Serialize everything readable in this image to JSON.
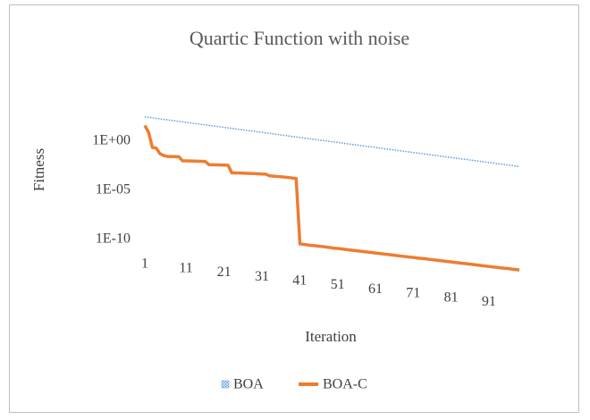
{
  "chart_data": {
    "type": "line",
    "title": "Quartic Function with noise",
    "xlabel": "Iteration",
    "ylabel": "Fitness",
    "log_y": true,
    "grid": false,
    "legend": "bottom",
    "ylim": [
      1e-14,
      1000
    ],
    "yticks": [
      {
        "value": 1,
        "label": "1E+00"
      },
      {
        "value": 1e-05,
        "label": "1E-05"
      },
      {
        "value": 1e-10,
        "label": "1E-10"
      }
    ],
    "categories": [
      "1",
      null,
      null,
      null,
      null,
      null,
      null,
      null,
      null,
      null,
      "11",
      null,
      null,
      null,
      null,
      null,
      null,
      null,
      null,
      null,
      "21",
      null,
      null,
      null,
      null,
      null,
      null,
      null,
      null,
      null,
      "31",
      null,
      null,
      null,
      null,
      null,
      null,
      null,
      null,
      null,
      "41",
      null,
      null,
      null,
      null,
      null,
      null,
      null,
      null,
      null,
      "51",
      null,
      null,
      null,
      null,
      null,
      null,
      null,
      null,
      null,
      "61",
      null,
      null,
      null,
      null,
      null,
      null,
      null,
      null,
      null,
      "71",
      null,
      null,
      null,
      null,
      null,
      null,
      null,
      null,
      null,
      "81",
      null,
      null,
      null,
      null,
      null,
      null,
      null,
      null,
      null,
      "91",
      null,
      null,
      null,
      null,
      null,
      null,
      null,
      null,
      null
    ],
    "series": [
      {
        "name": "BOA",
        "color": "#5b9bd5",
        "values": [
          300,
          267,
          237,
          211,
          187,
          166,
          148,
          131,
          117,
          104,
          92,
          82,
          73,
          65,
          58,
          51,
          46,
          41,
          36,
          32,
          28.5,
          25.3,
          22.5,
          20,
          17.8,
          15.8,
          14.1,
          12.5,
          11.1,
          9.9,
          8.8,
          7.8,
          6.9,
          6.2,
          5.5,
          4.9,
          4.3,
          3.8,
          3.4,
          3.0,
          2.7,
          2.4,
          2.1,
          1.9,
          1.7,
          1.5,
          1.3,
          1.2,
          1.05,
          0.93,
          0.83,
          0.74,
          0.66,
          0.58,
          0.52,
          0.46,
          0.41,
          0.36,
          0.32,
          0.29,
          0.26,
          0.23,
          0.2,
          0.18,
          0.16,
          0.14,
          0.13,
          0.11,
          0.1,
          0.089,
          0.079,
          0.07,
          0.063,
          0.056,
          0.049,
          0.044,
          0.039,
          0.035,
          0.031,
          0.027,
          0.024,
          0.022,
          0.019,
          0.017,
          0.015,
          0.014,
          0.012,
          0.011,
          0.0096,
          0.0085,
          0.0076,
          0.0068,
          0.006,
          0.0053,
          0.0047,
          0.0042,
          0.0037,
          0.0033,
          0.003,
          0.0026
        ]
      },
      {
        "name": "BOA-C",
        "color": "#ed7d31",
        "values": [
          40,
          8,
          0.23,
          0.2,
          0.054,
          0.035,
          0.028,
          0.028,
          0.027,
          0.026,
          0.01,
          0.01,
          0.0098,
          0.0095,
          0.0093,
          0.009,
          0.0085,
          0.004,
          0.004,
          0.0039,
          0.0038,
          0.0037,
          0.0036,
          0.0006,
          0.00059,
          0.00058,
          0.00056,
          0.00054,
          0.00052,
          0.0005,
          0.00048,
          0.00046,
          0.00044,
          0.0003,
          0.00028,
          0.00026,
          0.00024,
          0.00022,
          0.0002,
          0.00018,
          0.00016,
          3.5e-11,
          3.2e-11,
          2.8e-11,
          2.5e-11,
          2.3e-11,
          2.1e-11,
          1.9e-11,
          1.7e-11,
          1.5e-11,
          1.3e-11,
          1.2e-11,
          1.1e-11,
          9.8e-12,
          8.8e-12,
          7.9e-12,
          7.1e-12,
          6.4e-12,
          5.8e-12,
          5.2e-12,
          4.7e-12,
          4.2e-12,
          3.8e-12,
          3.4e-12,
          3.1e-12,
          2.8e-12,
          2.5e-12,
          2.2e-12,
          2e-12,
          1.8e-12,
          1.6e-12,
          1.5e-12,
          1.3e-12,
          1.2e-12,
          1.1e-12,
          9.7e-13,
          8.8e-13,
          7.9e-13,
          7.1e-13,
          6.4e-13,
          5.8e-13,
          5.2e-13,
          4.7e-13,
          4.2e-13,
          3.8e-13,
          3.4e-13,
          3.1e-13,
          2.8e-13,
          2.5e-13,
          2.2e-13,
          2e-13,
          1.8e-13,
          1.6e-13,
          1.5e-13,
          1.3e-13,
          1.2e-13,
          1.1e-13,
          9.8e-14,
          8.8e-14,
          7.9e-14
        ]
      }
    ]
  }
}
